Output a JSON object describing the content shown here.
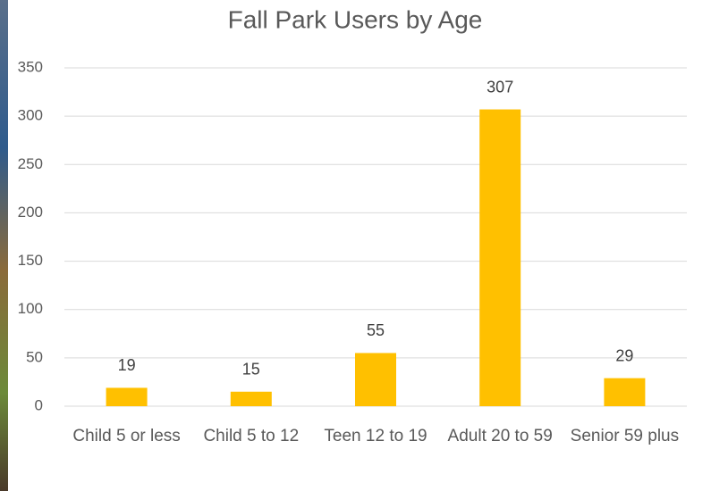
{
  "chart_data": {
    "type": "bar",
    "title": "Fall Park Users by Age",
    "categories": [
      "Child 5 or less",
      "Child 5 to 12",
      "Teen 12 to 19",
      "Adult 20 to 59",
      "Senior 59 plus"
    ],
    "values": [
      19,
      15,
      55,
      307,
      29
    ],
    "color": "#FFC000",
    "ylim": [
      0,
      350
    ],
    "yticks": [
      0,
      50,
      100,
      150,
      200,
      250,
      300,
      350
    ],
    "grid": true
  }
}
